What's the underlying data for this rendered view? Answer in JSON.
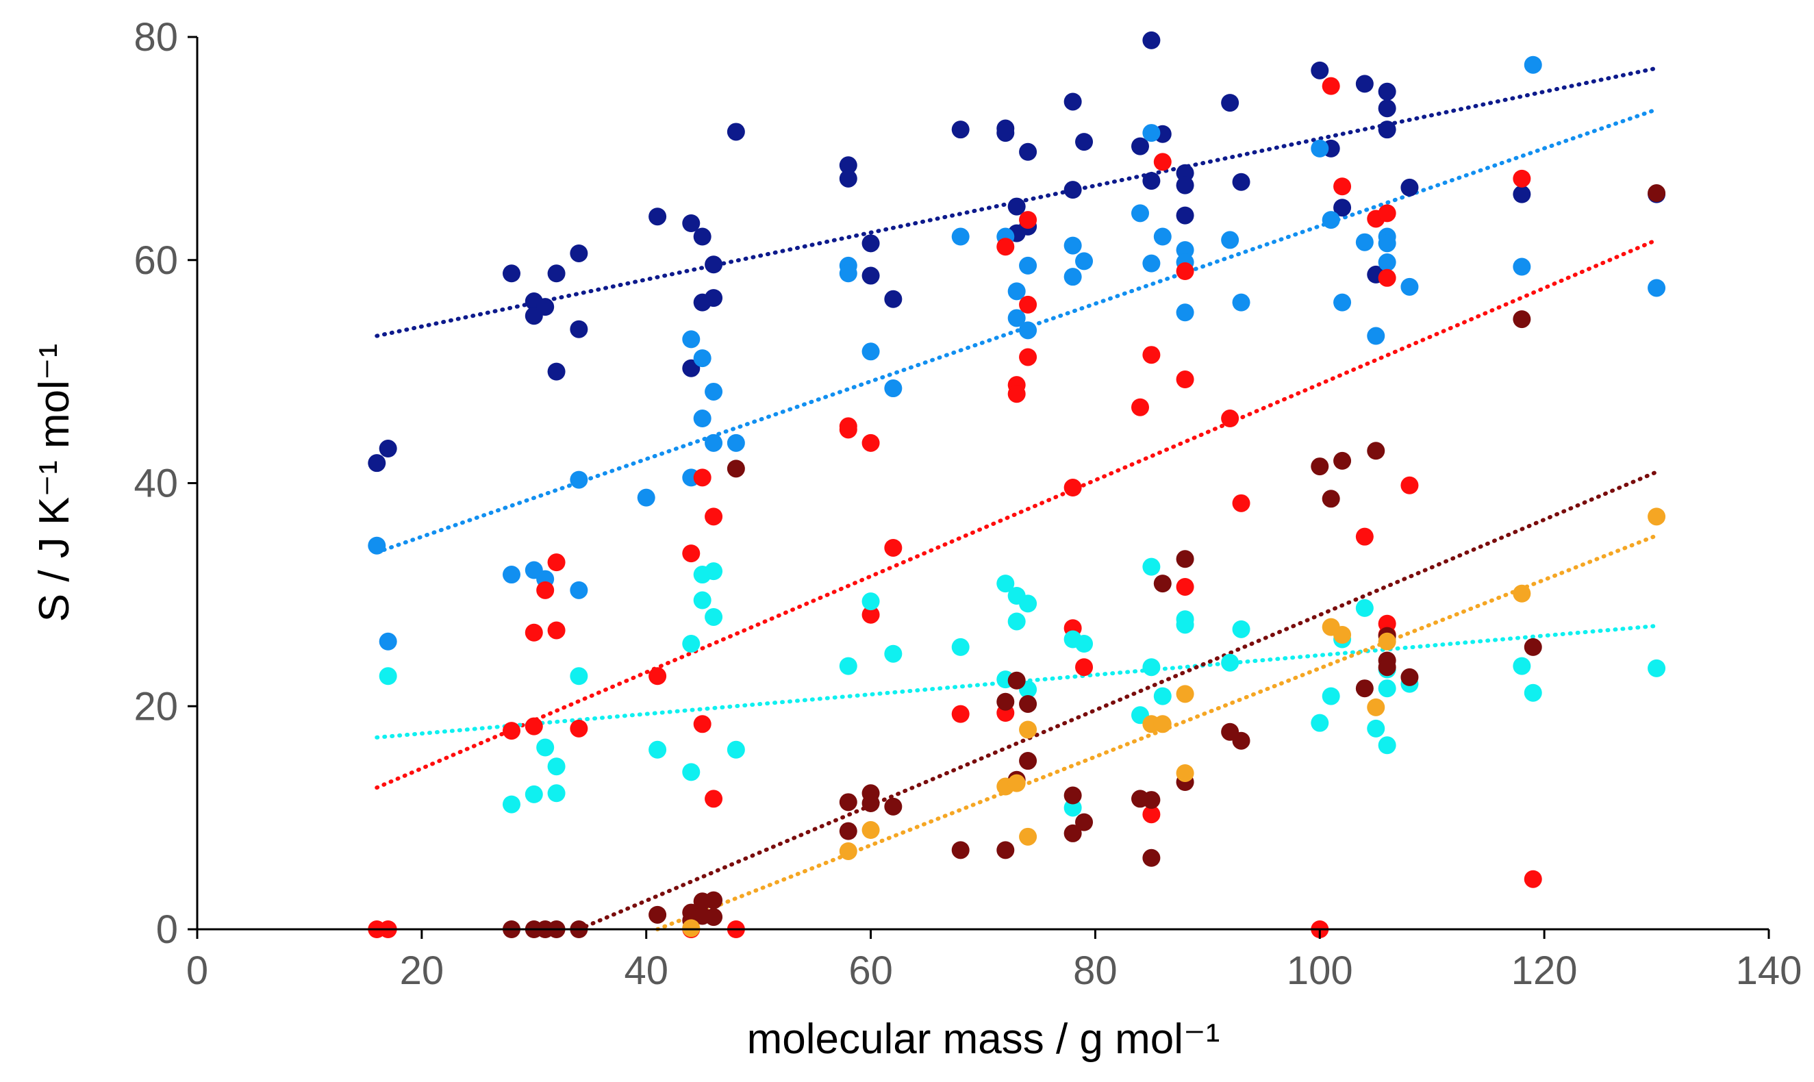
{
  "chart_data": {
    "type": "scatter",
    "title": "",
    "xlabel": "molecular mass / g mol⁻¹",
    "ylabel": "S / J K⁻¹ mol⁻¹",
    "xlim": [
      0,
      140
    ],
    "ylim": [
      0,
      80
    ],
    "xticks": [
      0,
      20,
      40,
      60,
      80,
      100,
      120,
      140
    ],
    "yticks": [
      0,
      20,
      40,
      60,
      80
    ],
    "xtick_labels": [
      "0",
      "20",
      "40",
      "60",
      "80",
      "100",
      "120",
      "140"
    ],
    "ytick_labels": [
      "0",
      "20",
      "40",
      "60",
      "80"
    ],
    "grid": false,
    "legend": "none",
    "series": [
      {
        "name": "navy",
        "color": "#0d1a8c",
        "trendline": [
          [
            16,
            53.2
          ],
          [
            130,
            77.2
          ]
        ],
        "points": [
          [
            16,
            41.8
          ],
          [
            17,
            43.1
          ],
          [
            28,
            58.8
          ],
          [
            30,
            56.3
          ],
          [
            30,
            55.0
          ],
          [
            31,
            55.8
          ],
          [
            32,
            58.8
          ],
          [
            32,
            50.0
          ],
          [
            34,
            60.6
          ],
          [
            34,
            53.8
          ],
          [
            41,
            63.9
          ],
          [
            44,
            63.3
          ],
          [
            44,
            50.3
          ],
          [
            45,
            62.1
          ],
          [
            45,
            56.2
          ],
          [
            46,
            59.6
          ],
          [
            46,
            56.6
          ],
          [
            48,
            71.5
          ],
          [
            58,
            68.5
          ],
          [
            58,
            67.3
          ],
          [
            60,
            61.5
          ],
          [
            60,
            58.6
          ],
          [
            62,
            56.5
          ],
          [
            68,
            71.7
          ],
          [
            72,
            71.8
          ],
          [
            72,
            71.4
          ],
          [
            73,
            64.8
          ],
          [
            73,
            62.4
          ],
          [
            74,
            63.0
          ],
          [
            74,
            69.7
          ],
          [
            78,
            74.2
          ],
          [
            78,
            66.3
          ],
          [
            79,
            70.6
          ],
          [
            84,
            70.2
          ],
          [
            85,
            79.7
          ],
          [
            85,
            67.1
          ],
          [
            86,
            71.3
          ],
          [
            88,
            67.8
          ],
          [
            88,
            66.7
          ],
          [
            88,
            64.0
          ],
          [
            92,
            74.1
          ],
          [
            93,
            67.0
          ],
          [
            100,
            77.0
          ],
          [
            101,
            70.0
          ],
          [
            102,
            64.7
          ],
          [
            104,
            75.8
          ],
          [
            105,
            58.7
          ],
          [
            106,
            75.1
          ],
          [
            106,
            73.6
          ],
          [
            106,
            71.7
          ],
          [
            108,
            66.5
          ],
          [
            118,
            65.9
          ],
          [
            130,
            65.9
          ]
        ]
      },
      {
        "name": "light-blue",
        "color": "#118ff0",
        "trendline": [
          [
            16,
            33.8
          ],
          [
            130,
            73.5
          ]
        ],
        "points": [
          [
            16,
            34.4
          ],
          [
            17,
            25.8
          ],
          [
            28,
            31.8
          ],
          [
            30,
            32.2
          ],
          [
            31,
            31.4
          ],
          [
            34,
            40.3
          ],
          [
            34,
            30.4
          ],
          [
            40,
            38.7
          ],
          [
            44,
            52.9
          ],
          [
            44,
            40.5
          ],
          [
            45,
            51.2
          ],
          [
            45,
            45.8
          ],
          [
            46,
            48.2
          ],
          [
            46,
            43.6
          ],
          [
            48,
            43.6
          ],
          [
            58,
            59.5
          ],
          [
            58,
            58.8
          ],
          [
            60,
            51.8
          ],
          [
            62,
            48.5
          ],
          [
            68,
            62.1
          ],
          [
            72,
            62.1
          ],
          [
            73,
            57.2
          ],
          [
            73,
            54.8
          ],
          [
            74,
            59.5
          ],
          [
            74,
            53.7
          ],
          [
            78,
            61.3
          ],
          [
            78,
            58.5
          ],
          [
            79,
            59.9
          ],
          [
            84,
            64.2
          ],
          [
            85,
            71.4
          ],
          [
            85,
            59.7
          ],
          [
            86,
            62.1
          ],
          [
            88,
            60.9
          ],
          [
            88,
            59.8
          ],
          [
            88,
            55.3
          ],
          [
            92,
            61.8
          ],
          [
            93,
            56.2
          ],
          [
            100,
            70.0
          ],
          [
            101,
            63.6
          ],
          [
            102,
            56.2
          ],
          [
            104,
            61.6
          ],
          [
            105,
            53.2
          ],
          [
            106,
            62.1
          ],
          [
            106,
            61.5
          ],
          [
            106,
            59.8
          ],
          [
            108,
            57.6
          ],
          [
            118,
            59.4
          ],
          [
            119,
            77.5
          ],
          [
            130,
            57.5
          ]
        ]
      },
      {
        "name": "red",
        "color": "#ff0d0d",
        "trendline": [
          [
            16,
            12.7
          ],
          [
            130,
            61.8
          ]
        ],
        "points": [
          [
            16,
            0
          ],
          [
            17,
            0
          ],
          [
            28,
            17.8
          ],
          [
            30,
            26.6
          ],
          [
            30,
            18.2
          ],
          [
            31,
            30.4
          ],
          [
            32,
            32.9
          ],
          [
            32,
            26.8
          ],
          [
            34,
            18.0
          ],
          [
            41,
            22.7
          ],
          [
            44,
            33.7
          ],
          [
            44,
            0
          ],
          [
            45,
            40.5
          ],
          [
            45,
            18.4
          ],
          [
            46,
            37.0
          ],
          [
            46,
            11.7
          ],
          [
            48,
            0
          ],
          [
            58,
            45.1
          ],
          [
            58,
            44.8
          ],
          [
            60,
            43.6
          ],
          [
            60,
            28.2
          ],
          [
            62,
            34.2
          ],
          [
            68,
            19.3
          ],
          [
            72,
            61.2
          ],
          [
            72,
            19.4
          ],
          [
            73,
            48.8
          ],
          [
            73,
            48.0
          ],
          [
            74,
            63.6
          ],
          [
            74,
            56.0
          ],
          [
            74,
            51.3
          ],
          [
            78,
            39.6
          ],
          [
            78,
            27.0
          ],
          [
            79,
            23.5
          ],
          [
            84,
            46.8
          ],
          [
            85,
            51.5
          ],
          [
            85,
            10.3
          ],
          [
            86,
            68.8
          ],
          [
            88,
            59.0
          ],
          [
            88,
            49.3
          ],
          [
            88,
            30.7
          ],
          [
            92,
            45.8
          ],
          [
            93,
            38.2
          ],
          [
            100,
            0
          ],
          [
            101,
            75.6
          ],
          [
            102,
            66.6
          ],
          [
            104,
            35.2
          ],
          [
            105,
            63.7
          ],
          [
            106,
            64.2
          ],
          [
            106,
            58.4
          ],
          [
            106,
            27.4
          ],
          [
            106,
            26.4
          ],
          [
            108,
            39.8
          ],
          [
            118,
            67.3
          ],
          [
            119,
            4.5
          ]
        ]
      },
      {
        "name": "cyan",
        "color": "#0ff0f0",
        "trendline": [
          [
            16,
            17.2
          ],
          [
            130,
            27.2
          ]
        ],
        "points": [
          [
            17,
            22.7
          ],
          [
            28,
            11.2
          ],
          [
            30,
            12.1
          ],
          [
            31,
            16.3
          ],
          [
            32,
            14.6
          ],
          [
            32,
            12.2
          ],
          [
            34,
            22.7
          ],
          [
            41,
            16.1
          ],
          [
            44,
            25.6
          ],
          [
            44,
            14.1
          ],
          [
            45,
            31.8
          ],
          [
            45,
            29.5
          ],
          [
            46,
            32.1
          ],
          [
            46,
            28.0
          ],
          [
            48,
            16.1
          ],
          [
            58,
            23.6
          ],
          [
            60,
            29.4
          ],
          [
            62,
            24.7
          ],
          [
            68,
            25.3
          ],
          [
            72,
            31.0
          ],
          [
            72,
            22.4
          ],
          [
            73,
            29.9
          ],
          [
            73,
            27.6
          ],
          [
            74,
            29.2
          ],
          [
            74,
            21.5
          ],
          [
            78,
            26.0
          ],
          [
            78,
            10.9
          ],
          [
            79,
            25.6
          ],
          [
            84,
            19.2
          ],
          [
            85,
            32.5
          ],
          [
            85,
            23.5
          ],
          [
            86,
            20.9
          ],
          [
            88,
            27.8
          ],
          [
            88,
            27.3
          ],
          [
            92,
            23.9
          ],
          [
            93,
            26.9
          ],
          [
            100,
            18.5
          ],
          [
            101,
            20.9
          ],
          [
            102,
            26.0
          ],
          [
            104,
            28.8
          ],
          [
            105,
            18.0
          ],
          [
            106,
            23.3
          ],
          [
            106,
            21.6
          ],
          [
            106,
            16.5
          ],
          [
            108,
            22.0
          ],
          [
            118,
            23.6
          ],
          [
            119,
            21.2
          ],
          [
            130,
            23.4
          ]
        ]
      },
      {
        "name": "dark-red",
        "color": "#7a0c0c",
        "trendline": [
          [
            34,
            0
          ],
          [
            130,
            41.0
          ]
        ],
        "points": [
          [
            28,
            0
          ],
          [
            30,
            0
          ],
          [
            31,
            0
          ],
          [
            32,
            0
          ],
          [
            34,
            0
          ],
          [
            41,
            1.3
          ],
          [
            44,
            1.5
          ],
          [
            44,
            0.8
          ],
          [
            45,
            2.5
          ],
          [
            45,
            1.2
          ],
          [
            46,
            2.6
          ],
          [
            46,
            1.1
          ],
          [
            48,
            41.3
          ],
          [
            58,
            11.4
          ],
          [
            58,
            8.8
          ],
          [
            60,
            12.2
          ],
          [
            60,
            11.3
          ],
          [
            62,
            11.0
          ],
          [
            68,
            7.1
          ],
          [
            72,
            20.4
          ],
          [
            72,
            7.1
          ],
          [
            73,
            22.3
          ],
          [
            73,
            13.4
          ],
          [
            74,
            20.2
          ],
          [
            74,
            15.1
          ],
          [
            78,
            12.0
          ],
          [
            78,
            8.6
          ],
          [
            79,
            9.6
          ],
          [
            84,
            11.7
          ],
          [
            85,
            11.6
          ],
          [
            85,
            6.4
          ],
          [
            86,
            31.0
          ],
          [
            88,
            33.2
          ],
          [
            88,
            13.2
          ],
          [
            92,
            17.7
          ],
          [
            93,
            16.9
          ],
          [
            100,
            41.5
          ],
          [
            101,
            38.6
          ],
          [
            102,
            42.0
          ],
          [
            104,
            21.6
          ],
          [
            105,
            42.9
          ],
          [
            106,
            26.3
          ],
          [
            106,
            24.1
          ],
          [
            106,
            23.5
          ],
          [
            108,
            22.6
          ],
          [
            118,
            54.7
          ],
          [
            119,
            25.3
          ],
          [
            130,
            66.0
          ]
        ]
      },
      {
        "name": "orange",
        "color": "#f5a623",
        "trendline": [
          [
            41,
            0
          ],
          [
            130,
            35.3
          ]
        ],
        "points": [
          [
            44,
            0.1
          ],
          [
            58,
            7.0
          ],
          [
            60,
            8.9
          ],
          [
            72,
            12.8
          ],
          [
            73,
            13.1
          ],
          [
            74,
            17.9
          ],
          [
            74,
            8.3
          ],
          [
            85,
            18.4
          ],
          [
            86,
            18.4
          ],
          [
            88,
            21.1
          ],
          [
            88,
            14.0
          ],
          [
            101,
            27.1
          ],
          [
            102,
            26.4
          ],
          [
            105,
            19.9
          ],
          [
            106,
            25.8
          ],
          [
            118,
            30.1
          ],
          [
            130,
            37.0
          ]
        ]
      }
    ]
  }
}
